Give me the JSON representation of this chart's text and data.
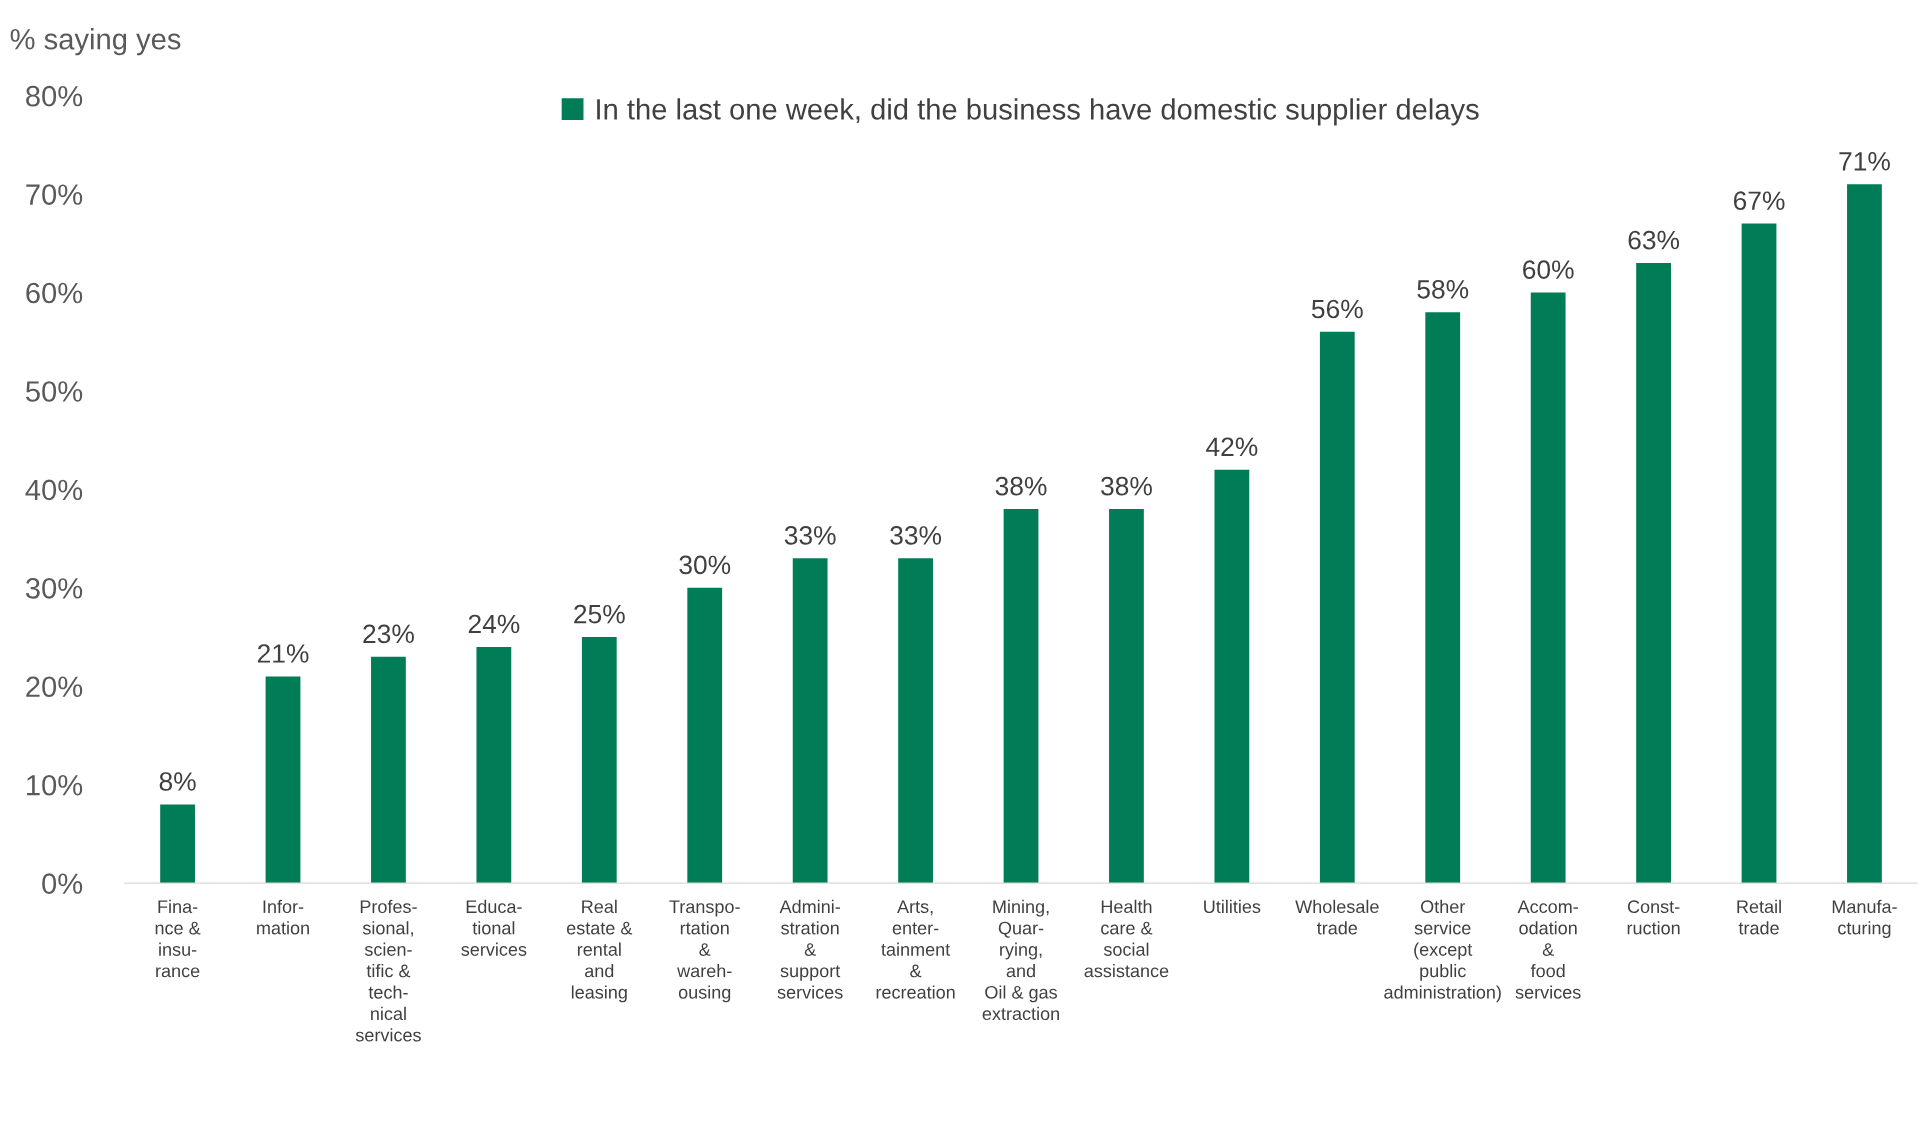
{
  "chart_data": {
    "type": "bar",
    "ylabel": "% saying yes",
    "categories": [
      "Fina-\nnce &\ninsu-\nrance",
      "Infor-\nmation",
      "Profes-\nsional,\nscien-\ntific &\ntech-\nnical\nservices",
      "Educa-\ntional\nservices",
      "Real\nestate &\nrental\nand\nleasing",
      "Transpo-\nrtation\n&\nwareh-\nousing",
      "Admini-\nstration\n&\nsupport\nservices",
      "Arts,\nenter-\ntainment\n&\nrecreation",
      "Mining,\nQuar-\nrying,\nand\nOil & gas\nextraction",
      "Health\ncare &\nsocial\nassistance",
      "Utilities",
      "Wholesale\ntrade",
      "Other\nservice\n(except\npublic\nadministration)",
      "Accom-\nodation\n&\nfood\nservices",
      "Const-\nruction",
      "Retail\ntrade",
      "Manufa-\ncturing"
    ],
    "series": [
      {
        "name": "In the last one week, did the business have domestic supplier delays",
        "color": "#007c56",
        "values": [
          8,
          21,
          23,
          24,
          25,
          30,
          33,
          33,
          38,
          38,
          42,
          56,
          58,
          60,
          63,
          67,
          71
        ],
        "value_labels": [
          "8%",
          "21%",
          "23%",
          "24%",
          "25%",
          "30%",
          "33%",
          "33%",
          "38%",
          "38%",
          "42%",
          "56%",
          "58%",
          "60%",
          "63%",
          "67%",
          "71%"
        ]
      }
    ],
    "ylim": [
      0,
      80
    ],
    "yticks": [
      {
        "value": 0,
        "label": "0%"
      },
      {
        "value": 10,
        "label": "10%"
      },
      {
        "value": 20,
        "label": "20%"
      },
      {
        "value": 30,
        "label": "30%"
      },
      {
        "value": 40,
        "label": "40%"
      },
      {
        "value": 50,
        "label": "50%"
      },
      {
        "value": 60,
        "label": "60%"
      },
      {
        "value": 70,
        "label": "70%"
      },
      {
        "value": 80,
        "label": "80%"
      }
    ],
    "grid": false,
    "legend": "top"
  }
}
